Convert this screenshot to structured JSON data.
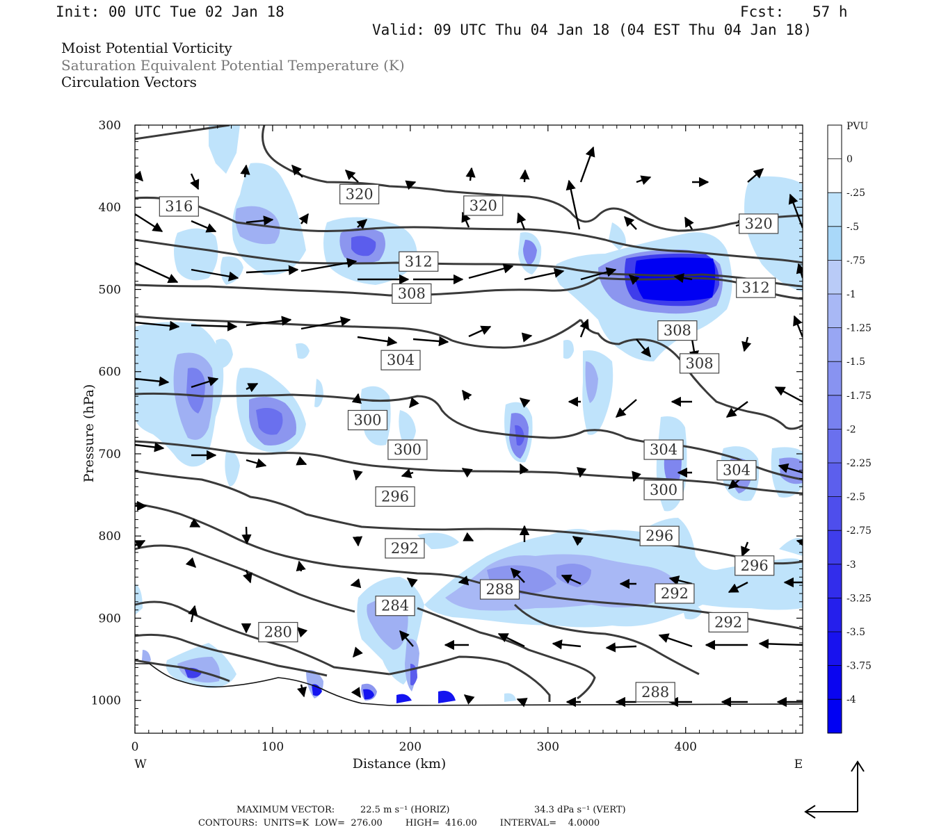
{
  "header": {
    "init": "Init: 00 UTC Tue 02 Jan 18",
    "fcst_label": "Fcst:",
    "fcst_value": "57 h",
    "valid": "Valid: 09 UTC Thu 04 Jan 18 (04 EST Thu 04 Jan 18)"
  },
  "titles": {
    "line1": "Moist Potential Vorticity",
    "line2": "Saturation Equivalent Potential Temperature (K)",
    "line3": "Circulation Vectors"
  },
  "footer": {
    "max_vector_label": "MAXIMUM VECTOR:",
    "max_vector_horiz": "22.5 m s⁻¹ (HORIZ)",
    "max_vector_vert": "34.3 dPa s⁻¹ (VERT)",
    "contours_line": "CONTOURS:  UNITS=K  LOW=  276.00        HIGH=  416.00        INTERVAL=    4.0000"
  },
  "colors": {
    "contour": "#3a3a3a",
    "vector": "#000000",
    "shade_light": "#bfe3fb",
    "shade_mid": "#8c96ef",
    "shade_dark": "#1414f0"
  },
  "chart_data": {
    "type": "cross-section",
    "xlabel": "Distance (km)",
    "ylabel": "Pressure (hPa)",
    "xlim": [
      0,
      485
    ],
    "ylim": [
      1040,
      300
    ],
    "x_ticks": [
      0,
      100,
      200,
      300,
      400
    ],
    "y_ticks": [
      300,
      400,
      500,
      600,
      700,
      800,
      900,
      1000
    ],
    "x_end_labels": {
      "west": "W",
      "east": "E"
    },
    "colorbar": {
      "unit": "PVU",
      "levels": [
        "0",
        "-.25",
        "-.5",
        "-.75",
        "-1",
        "-1.25",
        "-1.5",
        "-1.75",
        "-2",
        "-2.25",
        "-2.5",
        "-2.75",
        "-3",
        "-3.25",
        "-3.5",
        "-3.75",
        "-4"
      ],
      "colors": [
        "#ffffff",
        "#ffffff",
        "#bfe3fb",
        "#a9d8f9",
        "#b9cbf7",
        "#a8b8f5",
        "#98a6f3",
        "#8893f1",
        "#7881ef",
        "#6a70ee",
        "#5c5fed",
        "#4e4eec",
        "#3f3deb",
        "#322deb",
        "#251fec",
        "#1812ee",
        "#0a05f0",
        "#0000f3"
      ]
    },
    "contour_labels": [
      {
        "text": "316",
        "x": 32,
        "p": 399
      },
      {
        "text": "320",
        "x": 163,
        "p": 384
      },
      {
        "text": "320",
        "x": 253,
        "p": 398
      },
      {
        "text": "320",
        "x": 453,
        "p": 420
      },
      {
        "text": "312",
        "x": 206,
        "p": 466
      },
      {
        "text": "312",
        "x": 451,
        "p": 498
      },
      {
        "text": "308",
        "x": 201,
        "p": 505
      },
      {
        "text": "308",
        "x": 394,
        "p": 550
      },
      {
        "text": "308",
        "x": 410,
        "p": 590
      },
      {
        "text": "304",
        "x": 193,
        "p": 586
      },
      {
        "text": "304",
        "x": 384,
        "p": 695
      },
      {
        "text": "304",
        "x": 437,
        "p": 720
      },
      {
        "text": "300",
        "x": 169,
        "p": 659
      },
      {
        "text": "300",
        "x": 198,
        "p": 695
      },
      {
        "text": "300",
        "x": 384,
        "p": 744
      },
      {
        "text": "296",
        "x": 189,
        "p": 752
      },
      {
        "text": "296",
        "x": 381,
        "p": 800
      },
      {
        "text": "296",
        "x": 450,
        "p": 836
      },
      {
        "text": "292",
        "x": 196,
        "p": 815
      },
      {
        "text": "292",
        "x": 392,
        "p": 870
      },
      {
        "text": "292",
        "x": 431,
        "p": 905
      },
      {
        "text": "288",
        "x": 265,
        "p": 865
      },
      {
        "text": "288",
        "x": 378,
        "p": 990
      },
      {
        "text": "284",
        "x": 189,
        "p": 885
      },
      {
        "text": "280",
        "x": 104,
        "p": 917
      }
    ]
  }
}
